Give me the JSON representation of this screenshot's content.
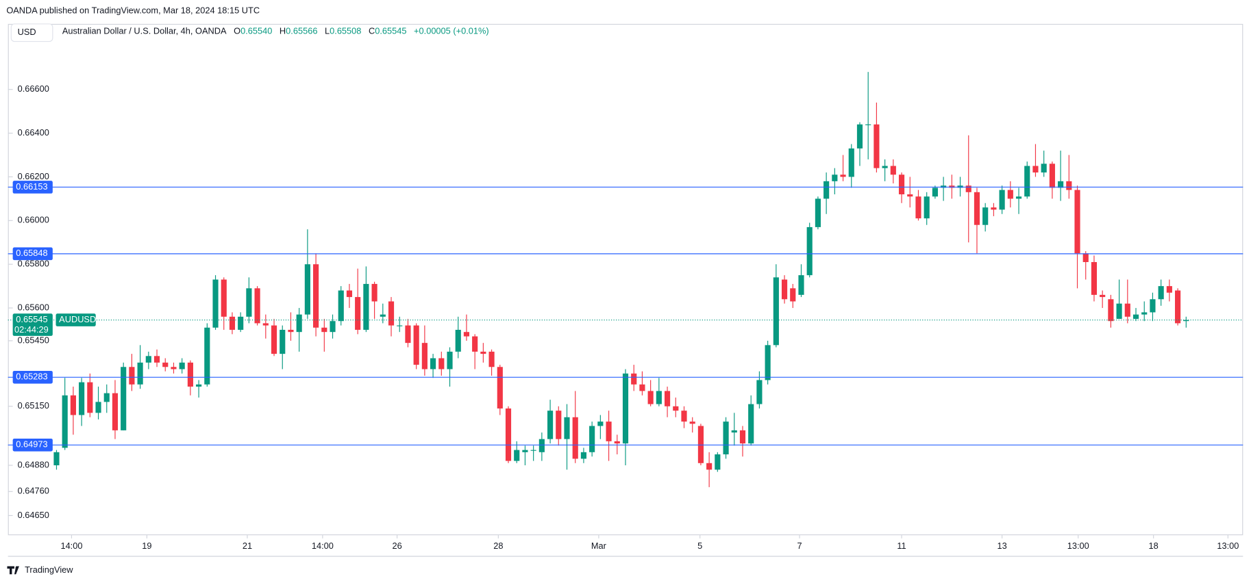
{
  "header": {
    "published": "OANDA published on TradingView.com, Mar 18, 2024 18:15 UTC",
    "currency": "USD",
    "symbol": "Australian Dollar / U.S. Dollar, 4h, OANDA",
    "open_label": "O",
    "open": "0.65540",
    "high_label": "H",
    "high": "0.65566",
    "low_label": "L",
    "low": "0.65508",
    "close_label": "C",
    "close": "0.65545",
    "change": "+0.00005 (+0.01%)"
  },
  "footer": {
    "brand": "TradingView"
  },
  "chart_data": {
    "type": "candlestick",
    "up_color": "#089981",
    "down_color": "#f23645",
    "ylim": [
      0.6456,
      0.669
    ],
    "yticks": [
      {
        "value": 0.666,
        "label": "0.66600"
      },
      {
        "value": 0.664,
        "label": "0.66400"
      },
      {
        "value": 0.662,
        "label": "0.66200"
      },
      {
        "value": 0.66,
        "label": "0.66000"
      },
      {
        "value": 0.658,
        "label": "0.65800"
      },
      {
        "value": 0.656,
        "label": "0.65600"
      },
      {
        "value": 0.6545,
        "label": "0.65450"
      },
      {
        "value": 0.6515,
        "label": "0.65150"
      },
      {
        "value": 0.6488,
        "label": "0.64880"
      },
      {
        "value": 0.6476,
        "label": "0.64760"
      },
      {
        "value": 0.6465,
        "label": "0.64650"
      }
    ],
    "xlim": [
      -5.8,
      141.8
    ],
    "xticks": [
      {
        "value": 1.8,
        "label": "14:00"
      },
      {
        "value": 10.8,
        "label": "19"
      },
      {
        "value": 22.8,
        "label": "21"
      },
      {
        "value": 31.8,
        "label": "14:00"
      },
      {
        "value": 40.7,
        "label": "26"
      },
      {
        "value": 52.8,
        "label": "28"
      },
      {
        "value": 64.8,
        "label": "Mar"
      },
      {
        "value": 76.9,
        "label": "5"
      },
      {
        "value": 88.8,
        "label": "7"
      },
      {
        "value": 101,
        "label": "11"
      },
      {
        "value": 113,
        "label": "13"
      },
      {
        "value": 122.1,
        "label": "13:00"
      },
      {
        "value": 131.1,
        "label": "18"
      },
      {
        "value": 140,
        "label": "13:00"
      }
    ],
    "price_lines": [
      {
        "value": 0.66153,
        "label": "0.66153",
        "color": "#2962ff"
      },
      {
        "value": 0.65848,
        "label": "0.65848",
        "color": "#2962ff"
      },
      {
        "value": 0.65283,
        "label": "0.65283",
        "color": "#2962ff"
      },
      {
        "value": 0.64973,
        "label": "0.64973",
        "color": "#2962ff"
      }
    ],
    "last_price": {
      "value": 0.65545,
      "label": "0.65545",
      "symbol": "AUDUSD",
      "countdown": "02:44:29",
      "color": "#089981"
    },
    "ohlc": [
      [
        0.6488,
        0.6495,
        0.6486,
        0.6494
      ],
      [
        0.6496,
        0.6528,
        0.6495,
        0.652
      ],
      [
        0.652,
        0.6524,
        0.6502,
        0.6511
      ],
      [
        0.6511,
        0.6528,
        0.6506,
        0.6526
      ],
      [
        0.6526,
        0.653,
        0.651,
        0.6512
      ],
      [
        0.6512,
        0.6524,
        0.6509,
        0.6517
      ],
      [
        0.6517,
        0.6525,
        0.6512,
        0.6521
      ],
      [
        0.6521,
        0.6527,
        0.65,
        0.6504
      ],
      [
        0.6504,
        0.6535,
        0.6504,
        0.6533
      ],
      [
        0.6533,
        0.6539,
        0.6522,
        0.6525
      ],
      [
        0.6525,
        0.6543,
        0.6523,
        0.6535
      ],
      [
        0.6535,
        0.654,
        0.6532,
        0.6538
      ],
      [
        0.6538,
        0.6541,
        0.6533,
        0.6535
      ],
      [
        0.6535,
        0.6537,
        0.6531,
        0.6533
      ],
      [
        0.6533,
        0.6535,
        0.653,
        0.6532
      ],
      [
        0.6532,
        0.6537,
        0.653,
        0.6535
      ],
      [
        0.6535,
        0.6536,
        0.652,
        0.6524
      ],
      [
        0.6524,
        0.6527,
        0.6519,
        0.6525
      ],
      [
        0.6525,
        0.6553,
        0.6524,
        0.6551
      ],
      [
        0.6551,
        0.6575,
        0.655,
        0.6573
      ],
      [
        0.6573,
        0.6574,
        0.655,
        0.6556
      ],
      [
        0.6556,
        0.6558,
        0.6548,
        0.655
      ],
      [
        0.655,
        0.6558,
        0.6549,
        0.6556
      ],
      [
        0.6556,
        0.6574,
        0.6553,
        0.6569
      ],
      [
        0.6569,
        0.657,
        0.6552,
        0.6553
      ],
      [
        0.6553,
        0.6557,
        0.6546,
        0.6552
      ],
      [
        0.6552,
        0.6555,
        0.6538,
        0.6539
      ],
      [
        0.6539,
        0.6552,
        0.6532,
        0.655
      ],
      [
        0.655,
        0.6558,
        0.6545,
        0.6549
      ],
      [
        0.6549,
        0.656,
        0.654,
        0.6557
      ],
      [
        0.6557,
        0.6596,
        0.6555,
        0.658
      ],
      [
        0.658,
        0.6585,
        0.6547,
        0.6551
      ],
      [
        0.6551,
        0.6555,
        0.654,
        0.6549
      ],
      [
        0.6549,
        0.6557,
        0.6546,
        0.6554
      ],
      [
        0.6554,
        0.657,
        0.6552,
        0.6568
      ],
      [
        0.6568,
        0.6571,
        0.656,
        0.6565
      ],
      [
        0.6565,
        0.6578,
        0.6548,
        0.655
      ],
      [
        0.655,
        0.6579,
        0.6549,
        0.6571
      ],
      [
        0.6571,
        0.6572,
        0.6555,
        0.6563
      ],
      [
        0.6556,
        0.6562,
        0.6553,
        0.6557
      ],
      [
        0.6563,
        0.6565,
        0.6547,
        0.6552
      ],
      [
        0.6552,
        0.6556,
        0.6549,
        0.6552
      ],
      [
        0.6552,
        0.6555,
        0.6542,
        0.6544
      ],
      [
        0.6552,
        0.6553,
        0.6532,
        0.6534
      ],
      [
        0.6544,
        0.6552,
        0.6529,
        0.6532
      ],
      [
        0.6532,
        0.6539,
        0.6528,
        0.6537
      ],
      [
        0.6537,
        0.654,
        0.6529,
        0.6532
      ],
      [
        0.6532,
        0.6542,
        0.6524,
        0.654
      ],
      [
        0.654,
        0.6556,
        0.6537,
        0.655
      ],
      [
        0.6549,
        0.6557,
        0.6545,
        0.6547
      ],
      [
        0.6547,
        0.6548,
        0.6532,
        0.654
      ],
      [
        0.654,
        0.6544,
        0.6535,
        0.6539
      ],
      [
        0.654,
        0.6541,
        0.6529,
        0.6533
      ],
      [
        0.6533,
        0.6534,
        0.6511,
        0.6514
      ],
      [
        0.6514,
        0.6515,
        0.6489,
        0.649
      ],
      [
        0.649,
        0.6499,
        0.6489,
        0.6495
      ],
      [
        0.6494,
        0.6497,
        0.6488,
        0.6495
      ],
      [
        0.6495,
        0.6497,
        0.649,
        0.6495
      ],
      [
        0.6494,
        0.6503,
        0.649,
        0.65
      ],
      [
        0.65,
        0.6518,
        0.6498,
        0.6513
      ],
      [
        0.6513,
        0.6515,
        0.6497,
        0.65
      ],
      [
        0.65,
        0.6516,
        0.6486,
        0.651
      ],
      [
        0.651,
        0.6522,
        0.6489,
        0.6491
      ],
      [
        0.6491,
        0.6496,
        0.6489,
        0.6494
      ],
      [
        0.6494,
        0.6508,
        0.6492,
        0.6506
      ],
      [
        0.6506,
        0.6511,
        0.65,
        0.6508
      ],
      [
        0.6508,
        0.6513,
        0.649,
        0.6499
      ],
      [
        0.6499,
        0.6502,
        0.6493,
        0.6498
      ],
      [
        0.6498,
        0.6532,
        0.6488,
        0.653
      ],
      [
        0.653,
        0.6534,
        0.6522,
        0.6525
      ],
      [
        0.6525,
        0.6531,
        0.652,
        0.6522
      ],
      [
        0.6522,
        0.6527,
        0.6515,
        0.6516
      ],
      [
        0.6516,
        0.6528,
        0.6515,
        0.6522
      ],
      [
        0.6522,
        0.6524,
        0.651,
        0.6515
      ],
      [
        0.6515,
        0.6519,
        0.651,
        0.6513
      ],
      [
        0.6513,
        0.6515,
        0.6505,
        0.6508
      ],
      [
        0.6508,
        0.651,
        0.6503,
        0.6507
      ],
      [
        0.6506,
        0.6507,
        0.6488,
        0.6489
      ],
      [
        0.6489,
        0.6494,
        0.6478,
        0.6486
      ],
      [
        0.6486,
        0.6494,
        0.6485,
        0.6493
      ],
      [
        0.6493,
        0.651,
        0.6491,
        0.6508
      ],
      [
        0.6503,
        0.6512,
        0.6497,
        0.6504
      ],
      [
        0.6504,
        0.6506,
        0.6492,
        0.6498
      ],
      [
        0.6498,
        0.652,
        0.6497,
        0.6516
      ],
      [
        0.6516,
        0.6531,
        0.6514,
        0.6527
      ],
      [
        0.6527,
        0.6545,
        0.6525,
        0.6543
      ],
      [
        0.6543,
        0.658,
        0.6542,
        0.6574
      ],
      [
        0.6573,
        0.6575,
        0.6562,
        0.6564
      ],
      [
        0.6569,
        0.6571,
        0.656,
        0.6563
      ],
      [
        0.6566,
        0.658,
        0.6565,
        0.6575
      ],
      [
        0.6575,
        0.6599,
        0.6574,
        0.6597
      ],
      [
        0.6597,
        0.6611,
        0.6596,
        0.661
      ],
      [
        0.661,
        0.6622,
        0.6603,
        0.6618
      ],
      [
        0.6618,
        0.6624,
        0.6612,
        0.6621
      ],
      [
        0.6621,
        0.663,
        0.6618,
        0.662
      ],
      [
        0.662,
        0.6635,
        0.6615,
        0.6633
      ],
      [
        0.6633,
        0.6645,
        0.6625,
        0.6644
      ],
      [
        0.6644,
        0.6668,
        0.6628,
        0.6644
      ],
      [
        0.6644,
        0.6654,
        0.6622,
        0.6624
      ],
      [
        0.6624,
        0.6628,
        0.6618,
        0.6625
      ],
      [
        0.6625,
        0.6628,
        0.6617,
        0.6621
      ],
      [
        0.6621,
        0.6622,
        0.6608,
        0.6612
      ],
      [
        0.6612,
        0.662,
        0.6606,
        0.6611
      ],
      [
        0.6611,
        0.6614,
        0.66,
        0.6601
      ],
      [
        0.6601,
        0.6613,
        0.6598,
        0.6611
      ],
      [
        0.6611,
        0.6616,
        0.661,
        0.6615
      ],
      [
        0.6615,
        0.662,
        0.6609,
        0.6616
      ],
      [
        0.6616,
        0.6621,
        0.661,
        0.6615
      ],
      [
        0.6615,
        0.662,
        0.6611,
        0.6616
      ],
      [
        0.6616,
        0.6639,
        0.659,
        0.6613
      ],
      [
        0.6613,
        0.6615,
        0.6585,
        0.6598
      ],
      [
        0.6598,
        0.6608,
        0.6595,
        0.6606
      ],
      [
        0.6606,
        0.6608,
        0.6602,
        0.6605
      ],
      [
        0.6605,
        0.6616,
        0.6603,
        0.6614
      ],
      [
        0.6614,
        0.6618,
        0.6606,
        0.661
      ],
      [
        0.661,
        0.6615,
        0.6603,
        0.6611
      ],
      [
        0.6611,
        0.6627,
        0.661,
        0.6625
      ],
      [
        0.6625,
        0.6635,
        0.662,
        0.6622
      ],
      [
        0.6622,
        0.6632,
        0.662,
        0.6626
      ],
      [
        0.6626,
        0.6627,
        0.661,
        0.6615
      ],
      [
        0.6615,
        0.6632,
        0.6609,
        0.6618
      ],
      [
        0.6618,
        0.663,
        0.661,
        0.6614
      ],
      [
        0.6614,
        0.6616,
        0.6569,
        0.6585
      ],
      [
        0.6585,
        0.6586,
        0.6573,
        0.6581
      ],
      [
        0.6581,
        0.6584,
        0.6563,
        0.6566
      ],
      [
        0.6566,
        0.6568,
        0.656,
        0.6565
      ],
      [
        0.6564,
        0.6566,
        0.6551,
        0.6554
      ],
      [
        0.6555,
        0.6573,
        0.6555,
        0.6562
      ],
      [
        0.6562,
        0.6573,
        0.6553,
        0.6556
      ],
      [
        0.6555,
        0.656,
        0.6554,
        0.6557
      ],
      [
        0.6557,
        0.6563,
        0.6554,
        0.6558
      ],
      [
        0.6558,
        0.6567,
        0.6554,
        0.6564
      ],
      [
        0.6564,
        0.6573,
        0.6561,
        0.657
      ],
      [
        0.657,
        0.6573,
        0.6563,
        0.6567
      ],
      [
        0.6568,
        0.6569,
        0.6552,
        0.6553
      ],
      [
        0.6554,
        0.6556,
        0.6551,
        0.65545
      ]
    ]
  }
}
